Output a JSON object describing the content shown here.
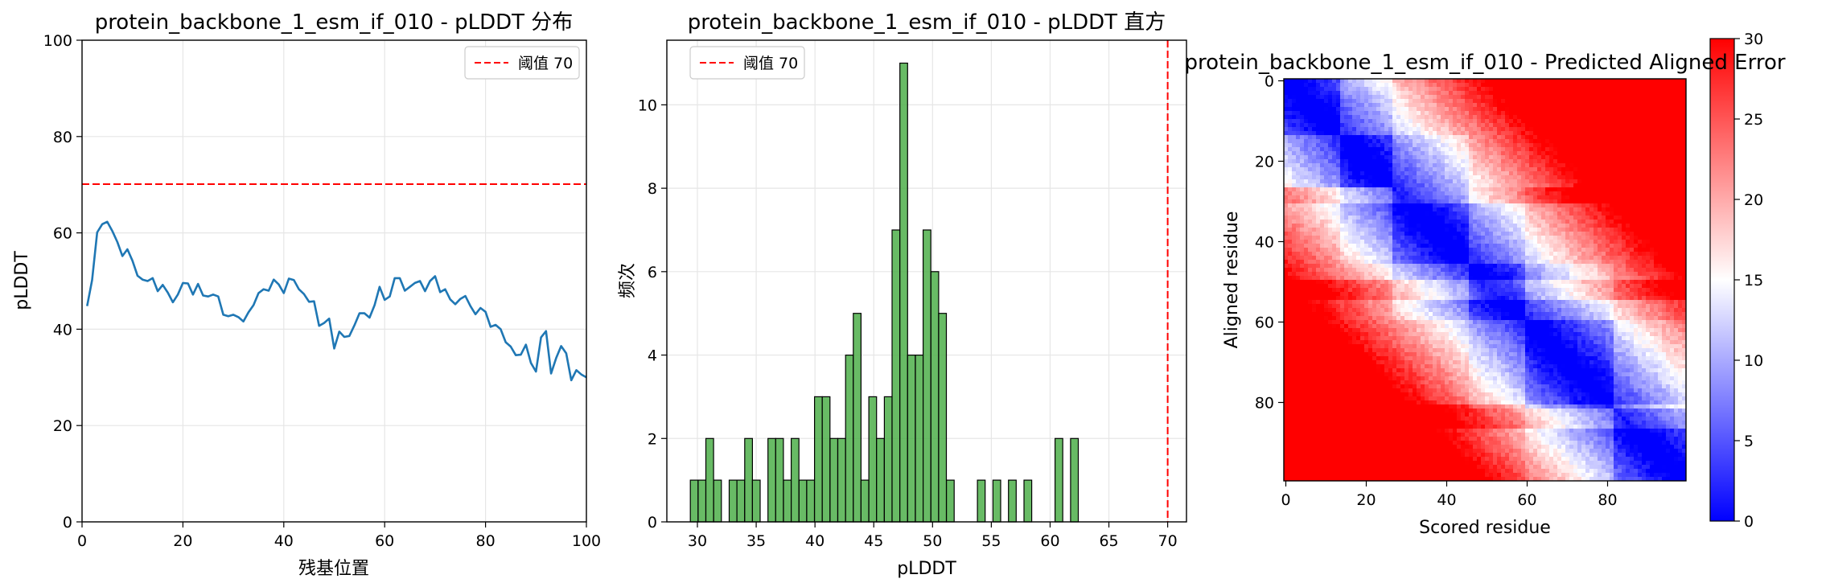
{
  "chart_data": [
    {
      "type": "line",
      "title": "protein_backbone_1_esm_if_010 - pLDDT 分布",
      "xlabel": "残基位置",
      "ylabel": "pLDDT",
      "xlim": [
        0,
        100
      ],
      "ylim": [
        0,
        100
      ],
      "xticks": [
        "0",
        "20",
        "40",
        "60",
        "80",
        "100"
      ],
      "yticks": [
        "0",
        "20",
        "40",
        "60",
        "80",
        "100"
      ],
      "grid": true,
      "legend_position": "top-right",
      "threshold": {
        "value": 70,
        "label": "阈值 70",
        "color": "#ff0000",
        "style": "dashed"
      },
      "series": [
        {
          "color": "#1f77b4",
          "x": [
            1,
            2,
            3,
            4,
            5,
            6,
            7,
            8,
            9,
            10,
            11,
            12,
            13,
            14,
            15,
            16,
            17,
            18,
            19,
            20,
            21,
            22,
            23,
            24,
            25,
            26,
            27,
            28,
            29,
            30,
            31,
            32,
            33,
            34,
            35,
            36,
            37,
            38,
            39,
            40,
            41,
            42,
            43,
            44,
            45,
            46,
            47,
            48,
            49,
            50,
            51,
            52,
            53,
            54,
            55,
            56,
            57,
            58,
            59,
            60,
            61,
            62,
            63,
            64,
            65,
            66,
            67,
            68,
            69,
            70,
            71,
            72,
            73,
            74,
            75,
            76,
            77,
            78,
            79,
            80,
            81,
            82,
            83,
            84,
            85,
            86,
            87,
            88,
            89,
            90,
            91,
            92,
            93,
            94,
            95,
            96,
            97,
            98,
            99,
            100
          ],
          "values": [
            44.8,
            50.2,
            60.1,
            61.8,
            62.3,
            60.4,
            58.1,
            55.2,
            56.6,
            54.2,
            51.1,
            50.3,
            50.0,
            50.6,
            47.9,
            49.2,
            47.6,
            45.6,
            47.2,
            49.6,
            49.5,
            47.2,
            49.4,
            47.0,
            46.8,
            47.2,
            46.8,
            43.0,
            42.7,
            43.0,
            42.5,
            41.6,
            43.5,
            45.0,
            47.5,
            48.3,
            48.0,
            50.3,
            49.3,
            47.5,
            50.5,
            50.2,
            48.3,
            47.3,
            45.7,
            45.8,
            40.7,
            41.3,
            42.2,
            36.0,
            39.5,
            38.4,
            38.6,
            40.8,
            43.3,
            43.3,
            42.4,
            45.0,
            48.8,
            46.1,
            46.8,
            50.6,
            50.6,
            48.0,
            48.8,
            49.6,
            50.0,
            47.9,
            50.0,
            51.0,
            47.7,
            48.3,
            46.2,
            45.2,
            46.3,
            46.9,
            44.8,
            43.1,
            44.4,
            43.6,
            40.5,
            40.9,
            40.0,
            37.3,
            36.4,
            34.6,
            34.7,
            36.8,
            33.0,
            31.2,
            38.3,
            39.6,
            30.8,
            34.0,
            36.5,
            35.0,
            29.4,
            31.5,
            30.6,
            30.0
          ]
        }
      ]
    },
    {
      "type": "bar",
      "title": "protein_backbone_1_esm_if_010 - pLDDT 直方",
      "xlabel": "pLDDT",
      "ylabel": "频次",
      "xlim": [
        27.4,
        71.6
      ],
      "ylim": [
        0,
        11.55
      ],
      "xticks": [
        "30",
        "35",
        "40",
        "45",
        "50",
        "55",
        "60",
        "65",
        "70"
      ],
      "yticks": [
        "0",
        "2",
        "4",
        "6",
        "8",
        "10"
      ],
      "grid": true,
      "legend_position": "top-left",
      "threshold": {
        "value": 70,
        "label": "阈值 70",
        "color": "#ff0000",
        "style": "dashed"
      },
      "bin_start": 29.4,
      "bin_width": 0.66,
      "bar_color": "#4daf4a",
      "counts": [
        1,
        1,
        2,
        1,
        0,
        1,
        1,
        2,
        1,
        0,
        2,
        2,
        1,
        2,
        1,
        1,
        3,
        3,
        2,
        2,
        4,
        5,
        1,
        3,
        2,
        3,
        7,
        11,
        4,
        4,
        7,
        6,
        5,
        1,
        0,
        0,
        0,
        1,
        0,
        1,
        0,
        1,
        0,
        1,
        0,
        0,
        0,
        2,
        0,
        2
      ]
    },
    {
      "type": "heatmap",
      "title": "protein_backbone_1_esm_if_010 - Predicted Aligned Error",
      "xlabel": "Scored residue",
      "ylabel": "Aligned residue",
      "size": 100,
      "xticks": [
        "0",
        "20",
        "40",
        "60",
        "80"
      ],
      "yticks": [
        "0",
        "20",
        "40",
        "60",
        "80"
      ],
      "colormap": "bwr",
      "colorbar": {
        "min": 0,
        "max": 30,
        "ticks": [
          "0",
          "5",
          "10",
          "15",
          "20",
          "25",
          "30"
        ]
      }
    }
  ]
}
